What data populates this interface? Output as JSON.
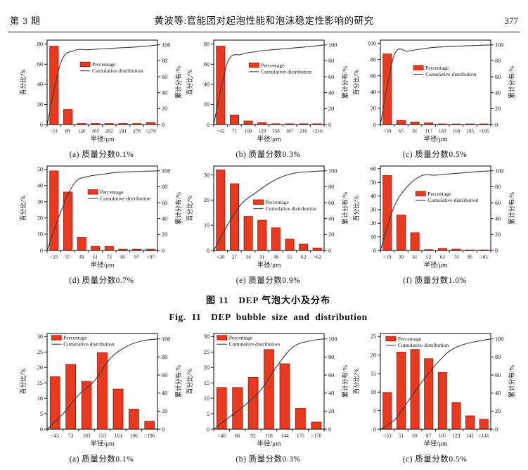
{
  "header": {
    "issue": "第 3 期",
    "title": "黄波等:官能团对起泡性能和泡沫稳定性影响的研究",
    "page": "377"
  },
  "figure": {
    "caption_zh": "图 11　DEP 气泡大小及分布",
    "caption_en": "Fig. 11　DEP bubble size and distribution"
  },
  "colors": {
    "bar_fill": "#e83a20",
    "bar_border": "#a81200",
    "line": "#3a3a3a",
    "axis": "#1a1a1a"
  },
  "legend": {
    "percentage": "Percentage",
    "cumulative": "Cumulative distribution"
  },
  "axis": {
    "ylabel_left": "百分比/%",
    "ylabel_right": "累计分布/%",
    "xlabel": "半径/μm",
    "right_ticks": [
      0,
      20,
      40,
      60,
      80,
      100
    ],
    "right_max": 106
  },
  "chart_data": [
    {
      "type": "bar",
      "caption": "(a) 质量分数0.1%",
      "categories": [
        "<51",
        "89",
        "126",
        "165",
        "202",
        "241",
        "278",
        ">278"
      ],
      "values": [
        78,
        15,
        1,
        1,
        1,
        1,
        1,
        2
      ],
      "cumulative": [
        78,
        93,
        94,
        95,
        96,
        97,
        98,
        100
      ],
      "left_ticks": [
        0,
        20,
        40,
        60,
        80
      ],
      "left_max": 84,
      "legend_xy": [
        0.3,
        0.26
      ]
    },
    {
      "type": "bar",
      "caption": "(b) 质量分数0.3%",
      "categories": [
        "<42",
        "71",
        "100",
        "129",
        "158",
        "187",
        "216",
        ">216"
      ],
      "values": [
        78,
        9.5,
        3.5,
        1.8,
        0.8,
        0.8,
        0.8,
        0.8
      ],
      "cumulative": [
        78,
        88,
        91.5,
        93.5,
        95,
        96.5,
        98,
        100
      ],
      "left_ticks": [
        0,
        20,
        40,
        60,
        80
      ],
      "left_max": 84,
      "legend_xy": [
        0.32,
        0.27
      ]
    },
    {
      "type": "bar",
      "caption": "(c) 质量分数0.5%",
      "categories": [
        "<39",
        "65",
        "91",
        "117",
        "143",
        "169",
        "195",
        ">195"
      ],
      "values": [
        87,
        5,
        3,
        2,
        0.8,
        0.8,
        0.8,
        0.8
      ],
      "cumulative": [
        87,
        92,
        95,
        97,
        98,
        98.7,
        99.3,
        100
      ],
      "left_ticks": [
        0,
        20,
        40,
        60,
        80,
        100
      ],
      "left_max": 104,
      "legend_xy": [
        0.3,
        0.3
      ]
    },
    {
      "type": "bar",
      "caption": "(d) 质量分数0.7%",
      "categories": [
        "<25",
        "37",
        "49",
        "61",
        "73",
        "85",
        "97",
        ">97"
      ],
      "values": [
        49,
        36,
        8,
        2.5,
        2.5,
        0.8,
        0.8,
        0.8
      ],
      "cumulative": [
        49,
        85,
        93,
        95.5,
        98,
        98.8,
        99.4,
        100
      ],
      "left_ticks": [
        0,
        10,
        20,
        30,
        40,
        50
      ],
      "left_max": 52,
      "legend_xy": [
        0.37,
        0.28
      ]
    },
    {
      "type": "bar",
      "caption": "(e) 质量分数0.9%",
      "categories": [
        "<20",
        "27",
        "34",
        "41",
        "48",
        "55",
        "62",
        ">62"
      ],
      "values": [
        32,
        26.5,
        13.5,
        12,
        9,
        4.5,
        2.5,
        1
      ],
      "cumulative": [
        32,
        58.5,
        72,
        84,
        93,
        97.5,
        99,
        100
      ],
      "left_ticks": [
        0,
        10,
        20,
        30
      ],
      "left_max": 33.5,
      "legend_xy": [
        0.36,
        0.4
      ]
    },
    {
      "type": "bar",
      "caption": "(f) 质量分数1.0%",
      "categories": [
        "<19",
        "30",
        "41",
        "52",
        "63",
        "74",
        "85",
        ">85"
      ],
      "values": [
        55,
        26,
        13,
        0.6,
        1.5,
        1,
        0.4,
        0.4
      ],
      "cumulative": [
        55,
        81,
        94,
        94.6,
        96.1,
        97.5,
        99,
        100
      ],
      "left_ticks": [
        0,
        10,
        20,
        30,
        40,
        50,
        60
      ],
      "left_max": 62,
      "legend_xy": [
        0.32,
        0.3
      ]
    },
    {
      "type": "bar",
      "caption": "(a) 质量分数0.1%",
      "categories": [
        "<43",
        "73",
        "103",
        "133",
        "163",
        "196",
        ">196"
      ],
      "values": [
        17,
        21,
        15.5,
        24.8,
        13,
        6.5,
        2.6
      ],
      "cumulative": [
        17,
        38,
        53.5,
        78.3,
        91.3,
        97.8,
        100
      ],
      "left_ticks": [
        0,
        5,
        10,
        15,
        20,
        25,
        30
      ],
      "left_max": 31,
      "legend_xy": [
        0.04,
        0.02
      ]
    },
    {
      "type": "bar",
      "caption": "(b) 质量分数0.3%",
      "categories": [
        "<40",
        "66",
        "92",
        "118",
        "144",
        "170",
        ">170"
      ],
      "values": [
        13.5,
        13.5,
        16.8,
        25.8,
        21.2,
        6.7,
        2.3
      ],
      "cumulative": [
        13.5,
        27,
        43.8,
        69.6,
        90.8,
        97.5,
        100
      ],
      "left_ticks": [
        0,
        5,
        10,
        15,
        20,
        25,
        30
      ],
      "left_max": 31,
      "legend_xy": [
        0.03,
        0.02
      ]
    },
    {
      "type": "bar",
      "caption": "(c) 质量分数0.5%",
      "categories": [
        "<33",
        "51",
        "69",
        "87",
        "105",
        "123",
        "141",
        ">141"
      ],
      "values": [
        9.9,
        20.8,
        21.5,
        19,
        15.3,
        7.2,
        3.6,
        2.7
      ],
      "cumulative": [
        9.9,
        30.7,
        52.2,
        71.2,
        86.5,
        93.7,
        97.3,
        100
      ],
      "left_ticks": [
        0,
        5,
        10,
        15,
        20,
        25
      ],
      "left_max": 25.8,
      "legend_xy": [
        0.05,
        0.03
      ]
    }
  ]
}
